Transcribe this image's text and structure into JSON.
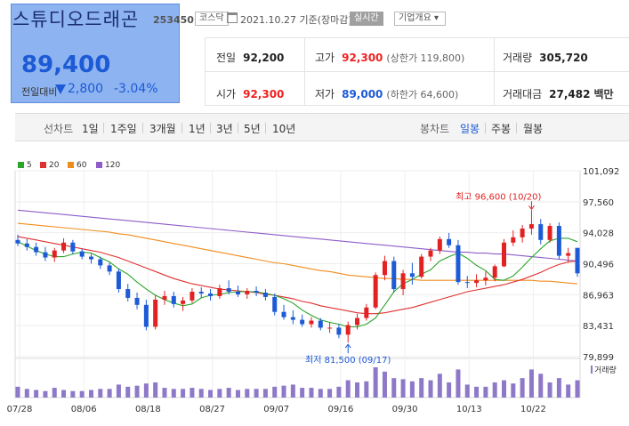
{
  "header": {
    "stock_name": "스튜디오드래곤",
    "stock_code": "253450",
    "market_tag": "코스닥",
    "date_text": "2021.10.27 기준(장마감)",
    "realtime_tag": "실시간",
    "company_tag": "기업개요 ▾",
    "price": "89,400",
    "change_label": "전일대비",
    "change_value": "2,800",
    "change_pct": "-3.04%"
  },
  "quote": {
    "prev_label": "전일",
    "prev_value": "92,200",
    "high_label": "고가",
    "high_value": "92,300",
    "upper_limit": "(상한가 119,800)",
    "volume_label": "거래량",
    "volume_value": "305,720",
    "open_label": "시가",
    "open_value": "92,300",
    "low_label": "저가",
    "low_value": "89,000",
    "lower_limit": "(하한가 64,600)",
    "amount_label": "거래대금",
    "amount_value": "27,482",
    "amount_unit": "백만"
  },
  "toolbar": {
    "line_chart_label": "선차트",
    "periods": [
      "1일",
      "1주일",
      "3개월",
      "1년",
      "3년",
      "5년",
      "10년"
    ],
    "candle_chart_label": "봉차트",
    "candle_tabs": [
      "일봉",
      "주봉",
      "월봉"
    ],
    "active_candle_tab": "일봉"
  },
  "colors": {
    "ma5": "#2aa52a",
    "ma20": "#e03131",
    "ma60": "#f08c1c",
    "ma120": "#8e5cc8",
    "up": "#e22222",
    "down": "#1c5ad6",
    "volume": "#8e78c8"
  },
  "chart_data": {
    "type": "candlestick",
    "legend": [
      "5",
      "20",
      "60",
      "120"
    ],
    "y_ticks": [
      "101,092",
      "97,560",
      "94,028",
      "90,496",
      "86,963",
      "83,431",
      "79,899"
    ],
    "y_tick_values": [
      101092,
      97560,
      94028,
      90496,
      86963,
      83431,
      79899
    ],
    "ylim": [
      79899,
      101092
    ],
    "x_ticks": [
      "07/28",
      "08/06",
      "08/18",
      "08/27",
      "09/07",
      "09/16",
      "09/30",
      "10/13",
      "10/22"
    ],
    "x_tick_index": [
      0,
      7,
      14,
      21,
      28,
      35,
      42,
      49,
      56
    ],
    "volume_label": "거래량",
    "annotation_high": "최고 96,600 (10/20)",
    "annotation_low": "최저 81,500 (09/17)",
    "candles": [
      [
        93200,
        93800,
        92500,
        92800
      ],
      [
        92800,
        93300,
        92000,
        92400
      ],
      [
        92400,
        92900,
        91400,
        91800
      ],
      [
        91800,
        92400,
        90800,
        91200
      ],
      [
        91200,
        92300,
        90700,
        92000
      ],
      [
        92000,
        93400,
        91700,
        92900
      ],
      [
        92900,
        93200,
        91600,
        91900
      ],
      [
        91900,
        92200,
        91000,
        91300
      ],
      [
        91300,
        91600,
        90500,
        91000
      ],
      [
        91000,
        91300,
        89900,
        90300
      ],
      [
        90300,
        90600,
        89200,
        89600
      ],
      [
        89600,
        89900,
        87200,
        87600
      ],
      [
        87600,
        88200,
        86200,
        86600
      ],
      [
        86600,
        87200,
        85300,
        85800
      ],
      [
        85800,
        86400,
        82900,
        83300
      ],
      [
        83300,
        86900,
        83000,
        86400
      ],
      [
        86400,
        87400,
        85800,
        86800
      ],
      [
        86800,
        87300,
        85500,
        85900
      ],
      [
        85900,
        86700,
        85100,
        86300
      ],
      [
        86300,
        87700,
        86000,
        87300
      ],
      [
        87300,
        87800,
        86600,
        87100
      ],
      [
        87100,
        87600,
        86300,
        86800
      ],
      [
        86800,
        88100,
        86500,
        87700
      ],
      [
        87700,
        88600,
        87000,
        87300
      ],
      [
        87300,
        88000,
        86700,
        87000
      ],
      [
        87000,
        87700,
        86500,
        87400
      ],
      [
        87400,
        87900,
        86800,
        87200
      ],
      [
        87200,
        87600,
        86300,
        86700
      ],
      [
        86700,
        87100,
        84600,
        85000
      ],
      [
        85000,
        85800,
        84100,
        84400
      ],
      [
        84400,
        85200,
        83600,
        84100
      ],
      [
        84100,
        84700,
        83300,
        83600
      ],
      [
        83600,
        84400,
        83200,
        84000
      ],
      [
        84000,
        84300,
        82900,
        83200
      ],
      [
        83200,
        83800,
        82600,
        83200
      ],
      [
        83200,
        83600,
        82000,
        82400
      ],
      [
        82400,
        83900,
        81500,
        83500
      ],
      [
        83500,
        84800,
        83000,
        84300
      ],
      [
        84300,
        85900,
        84000,
        85500
      ],
      [
        85500,
        89500,
        85300,
        89200
      ],
      [
        89200,
        91400,
        88600,
        90800
      ],
      [
        90800,
        91300,
        87200,
        87600
      ],
      [
        87600,
        89800,
        86900,
        89400
      ],
      [
        89400,
        90600,
        88100,
        89000
      ],
      [
        89000,
        91600,
        88800,
        91300
      ],
      [
        91300,
        92300,
        90800,
        92000
      ],
      [
        92000,
        93600,
        91600,
        93300
      ],
      [
        93300,
        94000,
        92300,
        92600
      ],
      [
        92600,
        93200,
        88100,
        88400
      ],
      [
        88400,
        89100,
        87700,
        88300
      ],
      [
        88300,
        89300,
        87800,
        88600
      ],
      [
        88600,
        89600,
        88000,
        88900
      ],
      [
        88900,
        90400,
        88500,
        90200
      ],
      [
        90200,
        93300,
        90100,
        92900
      ],
      [
        92900,
        94300,
        92500,
        93500
      ],
      [
        93500,
        94900,
        92900,
        94500
      ],
      [
        94500,
        96600,
        93800,
        95000
      ],
      [
        95000,
        95600,
        92700,
        93200
      ],
      [
        93200,
        95100,
        92900,
        94800
      ],
      [
        94800,
        95200,
        91000,
        91400
      ],
      [
        91400,
        92300,
        90600,
        91700
      ],
      [
        92300,
        92300,
        89000,
        89400
      ]
    ],
    "volumes": [
      10,
      8,
      7,
      6,
      9,
      7,
      6,
      6,
      7,
      8,
      8,
      12,
      10,
      11,
      13,
      14,
      9,
      8,
      8,
      9,
      8,
      7,
      8,
      9,
      7,
      8,
      8,
      8,
      10,
      11,
      12,
      9,
      9,
      8,
      8,
      10,
      16,
      14,
      15,
      28,
      24,
      18,
      17,
      15,
      18,
      16,
      22,
      14,
      26,
      12,
      10,
      10,
      14,
      16,
      13,
      18,
      26,
      22,
      14,
      18,
      12,
      16
    ],
    "ma_lines": {
      "ma5": [
        93000,
        92500,
        92000,
        91600,
        91300,
        91300,
        91600,
        91800,
        91700,
        91200,
        90700,
        89900,
        89300,
        88400,
        87600,
        86900,
        86400,
        86000,
        85700,
        85900,
        86600,
        86900,
        87000,
        87200,
        87300,
        87300,
        87300,
        87100,
        86900,
        86500,
        86000,
        85200,
        84600,
        84100,
        83800,
        83600,
        83300,
        83300,
        83600,
        84300,
        85800,
        87300,
        88200,
        88700,
        89300,
        89800,
        90800,
        91300,
        91700,
        91100,
        90300,
        89700,
        88700,
        88600,
        89100,
        90100,
        91200,
        92200,
        93100,
        93400,
        93400,
        93000
      ],
      "ma20": [
        93600,
        93400,
        93200,
        93000,
        92800,
        92600,
        92400,
        92200,
        92000,
        91800,
        91500,
        91200,
        90800,
        90400,
        90000,
        89600,
        89200,
        88800,
        88500,
        88200,
        88000,
        87800,
        87600,
        87500,
        87400,
        87300,
        87200,
        87000,
        86900,
        86700,
        86500,
        86200,
        86000,
        85700,
        85500,
        85300,
        85100,
        84900,
        84800,
        84800,
        84900,
        85100,
        85300,
        85500,
        85800,
        86100,
        86400,
        86700,
        87000,
        87300,
        87500,
        87700,
        87900,
        88100,
        88400,
        88700,
        89100,
        89500,
        90000,
        90400,
        90700,
        90800
      ],
      "ma60": [
        95100,
        95000,
        94900,
        94800,
        94700,
        94600,
        94500,
        94400,
        94300,
        94200,
        94100,
        93900,
        93800,
        93600,
        93400,
        93200,
        93000,
        92800,
        92600,
        92400,
        92200,
        92000,
        91800,
        91600,
        91400,
        91200,
        91000,
        90800,
        90600,
        90500,
        90300,
        90100,
        89900,
        89700,
        89600,
        89400,
        89200,
        89100,
        89000,
        88900,
        88800,
        88800,
        88700,
        88700,
        88600,
        88600,
        88600,
        88600,
        88600,
        88600,
        88600,
        88600,
        88600,
        88600,
        88600,
        88600,
        88600,
        88500,
        88500,
        88400,
        88300,
        88200
      ],
      "ma120": [
        96600,
        96500,
        96400,
        96300,
        96200,
        96100,
        96000,
        95900,
        95800,
        95700,
        95600,
        95500,
        95400,
        95300,
        95200,
        95100,
        95000,
        94900,
        94800,
        94700,
        94600,
        94500,
        94400,
        94300,
        94200,
        94100,
        94000,
        93900,
        93800,
        93700,
        93600,
        93500,
        93400,
        93300,
        93200,
        93100,
        93000,
        92900,
        92800,
        92700,
        92600,
        92500,
        92400,
        92300,
        92200,
        92100,
        92000,
        91900,
        91800,
        91800,
        91700,
        91700,
        91600,
        91600,
        91500,
        91400,
        91300,
        91200,
        91100,
        91000,
        90900,
        90800
      ]
    }
  }
}
